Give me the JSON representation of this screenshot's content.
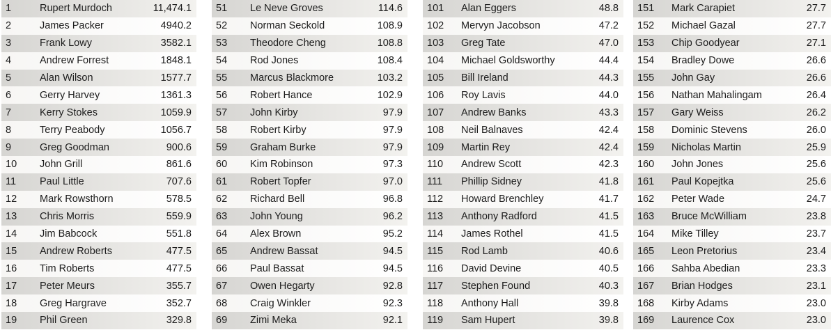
{
  "columns": [
    {
      "rows": [
        {
          "rank": "1",
          "name": "Rupert Murdoch",
          "value": "11,474.1"
        },
        {
          "rank": "2",
          "name": "James Packer",
          "value": "4940.2"
        },
        {
          "rank": "3",
          "name": "Frank Lowy",
          "value": "3582.1"
        },
        {
          "rank": "4",
          "name": "Andrew Forrest",
          "value": "1848.1"
        },
        {
          "rank": "5",
          "name": "Alan Wilson",
          "value": "1577.7"
        },
        {
          "rank": "6",
          "name": "Gerry Harvey",
          "value": "1361.3"
        },
        {
          "rank": "7",
          "name": "Kerry Stokes",
          "value": "1059.9"
        },
        {
          "rank": "8",
          "name": "Terry Peabody",
          "value": "1056.7"
        },
        {
          "rank": "9",
          "name": "Greg Goodman",
          "value": "900.6"
        },
        {
          "rank": "10",
          "name": "John Grill",
          "value": "861.6"
        },
        {
          "rank": "11",
          "name": "Paul Little",
          "value": "707.6"
        },
        {
          "rank": "12",
          "name": "Mark Rowsthorn",
          "value": "578.5"
        },
        {
          "rank": "13",
          "name": "Chris Morris",
          "value": "559.9"
        },
        {
          "rank": "14",
          "name": "Jim Babcock",
          "value": "551.8"
        },
        {
          "rank": "15",
          "name": "Andrew Roberts",
          "value": "477.5"
        },
        {
          "rank": "16",
          "name": "Tim Roberts",
          "value": "477.5"
        },
        {
          "rank": "17",
          "name": "Peter Meurs",
          "value": "355.7"
        },
        {
          "rank": "18",
          "name": "Greg Hargrave",
          "value": "352.7"
        },
        {
          "rank": "19",
          "name": "Phil Green",
          "value": "329.8"
        }
      ]
    },
    {
      "rows": [
        {
          "rank": "51",
          "name": "Le Neve Groves",
          "value": "114.6"
        },
        {
          "rank": "52",
          "name": "Norman Seckold",
          "value": "108.9"
        },
        {
          "rank": "53",
          "name": "Theodore Cheng",
          "value": "108.8"
        },
        {
          "rank": "54",
          "name": "Rod Jones",
          "value": "108.4"
        },
        {
          "rank": "55",
          "name": "Marcus Blackmore",
          "value": "103.2"
        },
        {
          "rank": "56",
          "name": "Robert Hance",
          "value": "102.9"
        },
        {
          "rank": "57",
          "name": "John Kirby",
          "value": "97.9"
        },
        {
          "rank": "58",
          "name": "Robert Kirby",
          "value": "97.9"
        },
        {
          "rank": "59",
          "name": "Graham Burke",
          "value": "97.9"
        },
        {
          "rank": "60",
          "name": "Kim Robinson",
          "value": "97.3"
        },
        {
          "rank": "61",
          "name": "Robert Topfer",
          "value": "97.0"
        },
        {
          "rank": "62",
          "name": "Richard Bell",
          "value": "96.8"
        },
        {
          "rank": "63",
          "name": "John Young",
          "value": "96.2"
        },
        {
          "rank": "64",
          "name": "Alex Brown",
          "value": "95.2"
        },
        {
          "rank": "65",
          "name": "Andrew Bassat",
          "value": "94.5"
        },
        {
          "rank": "66",
          "name": "Paul Bassat",
          "value": "94.5"
        },
        {
          "rank": "67",
          "name": "Owen Hegarty",
          "value": "92.8"
        },
        {
          "rank": "68",
          "name": "Craig Winkler",
          "value": "92.3"
        },
        {
          "rank": "69",
          "name": "Zimi Meka",
          "value": "92.1"
        }
      ]
    },
    {
      "rows": [
        {
          "rank": "101",
          "name": "Alan Eggers",
          "value": "48.8"
        },
        {
          "rank": "102",
          "name": "Mervyn Jacobson",
          "value": "47.2"
        },
        {
          "rank": "103",
          "name": "Greg Tate",
          "value": "47.0"
        },
        {
          "rank": "104",
          "name": "Michael Goldsworthy",
          "value": "44.4"
        },
        {
          "rank": "105",
          "name": "Bill Ireland",
          "value": "44.3"
        },
        {
          "rank": "106",
          "name": "Roy Lavis",
          "value": "44.0"
        },
        {
          "rank": "107",
          "name": "Andrew Banks",
          "value": "43.3"
        },
        {
          "rank": "108",
          "name": "Neil Balnaves",
          "value": "42.4"
        },
        {
          "rank": "109",
          "name": "Martin Rey",
          "value": "42.4"
        },
        {
          "rank": "110",
          "name": "Andrew Scott",
          "value": "42.3"
        },
        {
          "rank": "111",
          "name": "Phillip Sidney",
          "value": "41.8"
        },
        {
          "rank": "112",
          "name": "Howard Brenchley",
          "value": "41.7"
        },
        {
          "rank": "113",
          "name": "Anthony Radford",
          "value": "41.5"
        },
        {
          "rank": "114",
          "name": "James Rothel",
          "value": "41.5"
        },
        {
          "rank": "115",
          "name": "Rod Lamb",
          "value": "40.6"
        },
        {
          "rank": "116",
          "name": "David Devine",
          "value": "40.5"
        },
        {
          "rank": "117",
          "name": "Stephen Found",
          "value": "40.3"
        },
        {
          "rank": "118",
          "name": "Anthony Hall",
          "value": "39.8"
        },
        {
          "rank": "119",
          "name": "Sam Hupert",
          "value": "39.8"
        }
      ]
    },
    {
      "rows": [
        {
          "rank": "151",
          "name": "Mark Carapiet",
          "value": "27.7"
        },
        {
          "rank": "152",
          "name": "Michael Gazal",
          "value": "27.7"
        },
        {
          "rank": "153",
          "name": "Chip Goodyear",
          "value": "27.1"
        },
        {
          "rank": "154",
          "name": "Bradley Dowe",
          "value": "26.6"
        },
        {
          "rank": "155",
          "name": "John Gay",
          "value": "26.6"
        },
        {
          "rank": "156",
          "name": "Nathan Mahalingam",
          "value": "26.4"
        },
        {
          "rank": "157",
          "name": "Gary Weiss",
          "value": "26.2"
        },
        {
          "rank": "158",
          "name": "Dominic Stevens",
          "value": "26.0"
        },
        {
          "rank": "159",
          "name": "Nicholas Martin",
          "value": "25.9"
        },
        {
          "rank": "160",
          "name": "John Jones",
          "value": "25.6"
        },
        {
          "rank": "161",
          "name": "Paul Kopejtka",
          "value": "25.6"
        },
        {
          "rank": "162",
          "name": "Peter Wade",
          "value": "24.7"
        },
        {
          "rank": "163",
          "name": "Bruce McWilliam",
          "value": "23.8"
        },
        {
          "rank": "164",
          "name": "Mike Tilley",
          "value": "23.7"
        },
        {
          "rank": "165",
          "name": "Leon Pretorius",
          "value": "23.4"
        },
        {
          "rank": "166",
          "name": "Sahba Abedian",
          "value": "23.3"
        },
        {
          "rank": "167",
          "name": "Brian Hodges",
          "value": "23.1"
        },
        {
          "rank": "168",
          "name": "Kirby Adams",
          "value": "23.0"
        },
        {
          "rank": "169",
          "name": "Laurence Cox",
          "value": "23.0"
        }
      ]
    }
  ]
}
